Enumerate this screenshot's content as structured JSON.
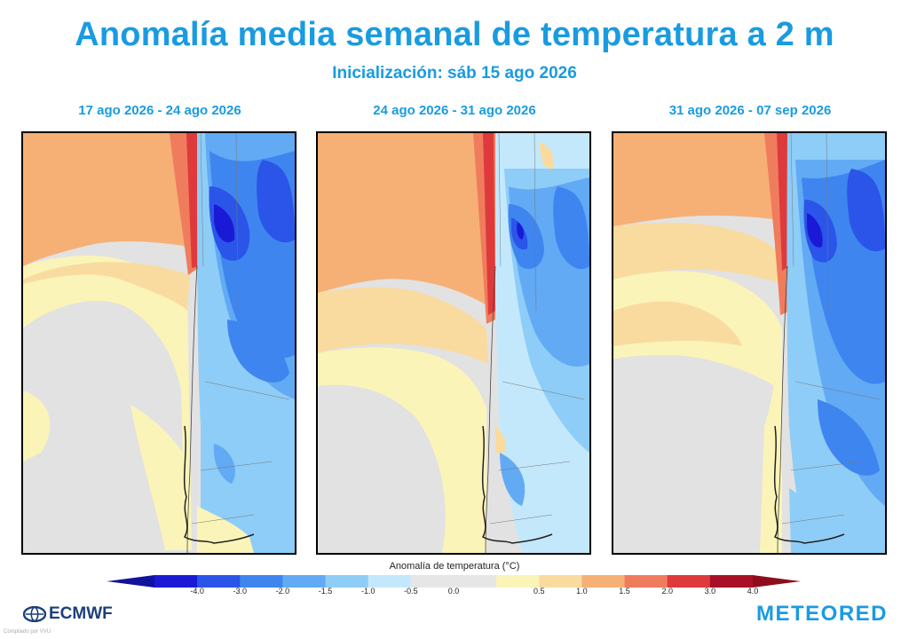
{
  "title": "Anomalía media semanal de temperatura a 2 m",
  "subtitle": "Inicialización: sáb 15 ago 2026",
  "panels": [
    {
      "period": "17 ago 2026 - 24 ago 2026"
    },
    {
      "period": "24 ago 2026 - 31 ago 2026"
    },
    {
      "period": "31 ago 2026 - 07 sep 2026"
    }
  ],
  "legend": {
    "title": "Anomalía de temperatura (°C)",
    "ticks": [
      "-4.0",
      "-3.0",
      "-2.0",
      "-1.5",
      "-1.0",
      "-0.5",
      "0.0",
      "0.5",
      "1.0",
      "1.5",
      "2.0",
      "3.0",
      "4.0"
    ],
    "colors": [
      "#1a1ad6",
      "#2a55e8",
      "#3f85ef",
      "#62aaf4",
      "#8ecdf7",
      "#c4e8fb",
      "#e6e6e6",
      "#e6e6e6",
      "#fbf4b8",
      "#f9dba0",
      "#f6b075",
      "#f07c5e",
      "#de3a3c",
      "#a71027"
    ],
    "under_color": "#12129e",
    "over_color": "#8e0d1c"
  },
  "footer": {
    "ecmwf_logo": "ECMWF",
    "compiled_by": "Compilado por VVU",
    "meteored_logo": "METEORED"
  }
}
